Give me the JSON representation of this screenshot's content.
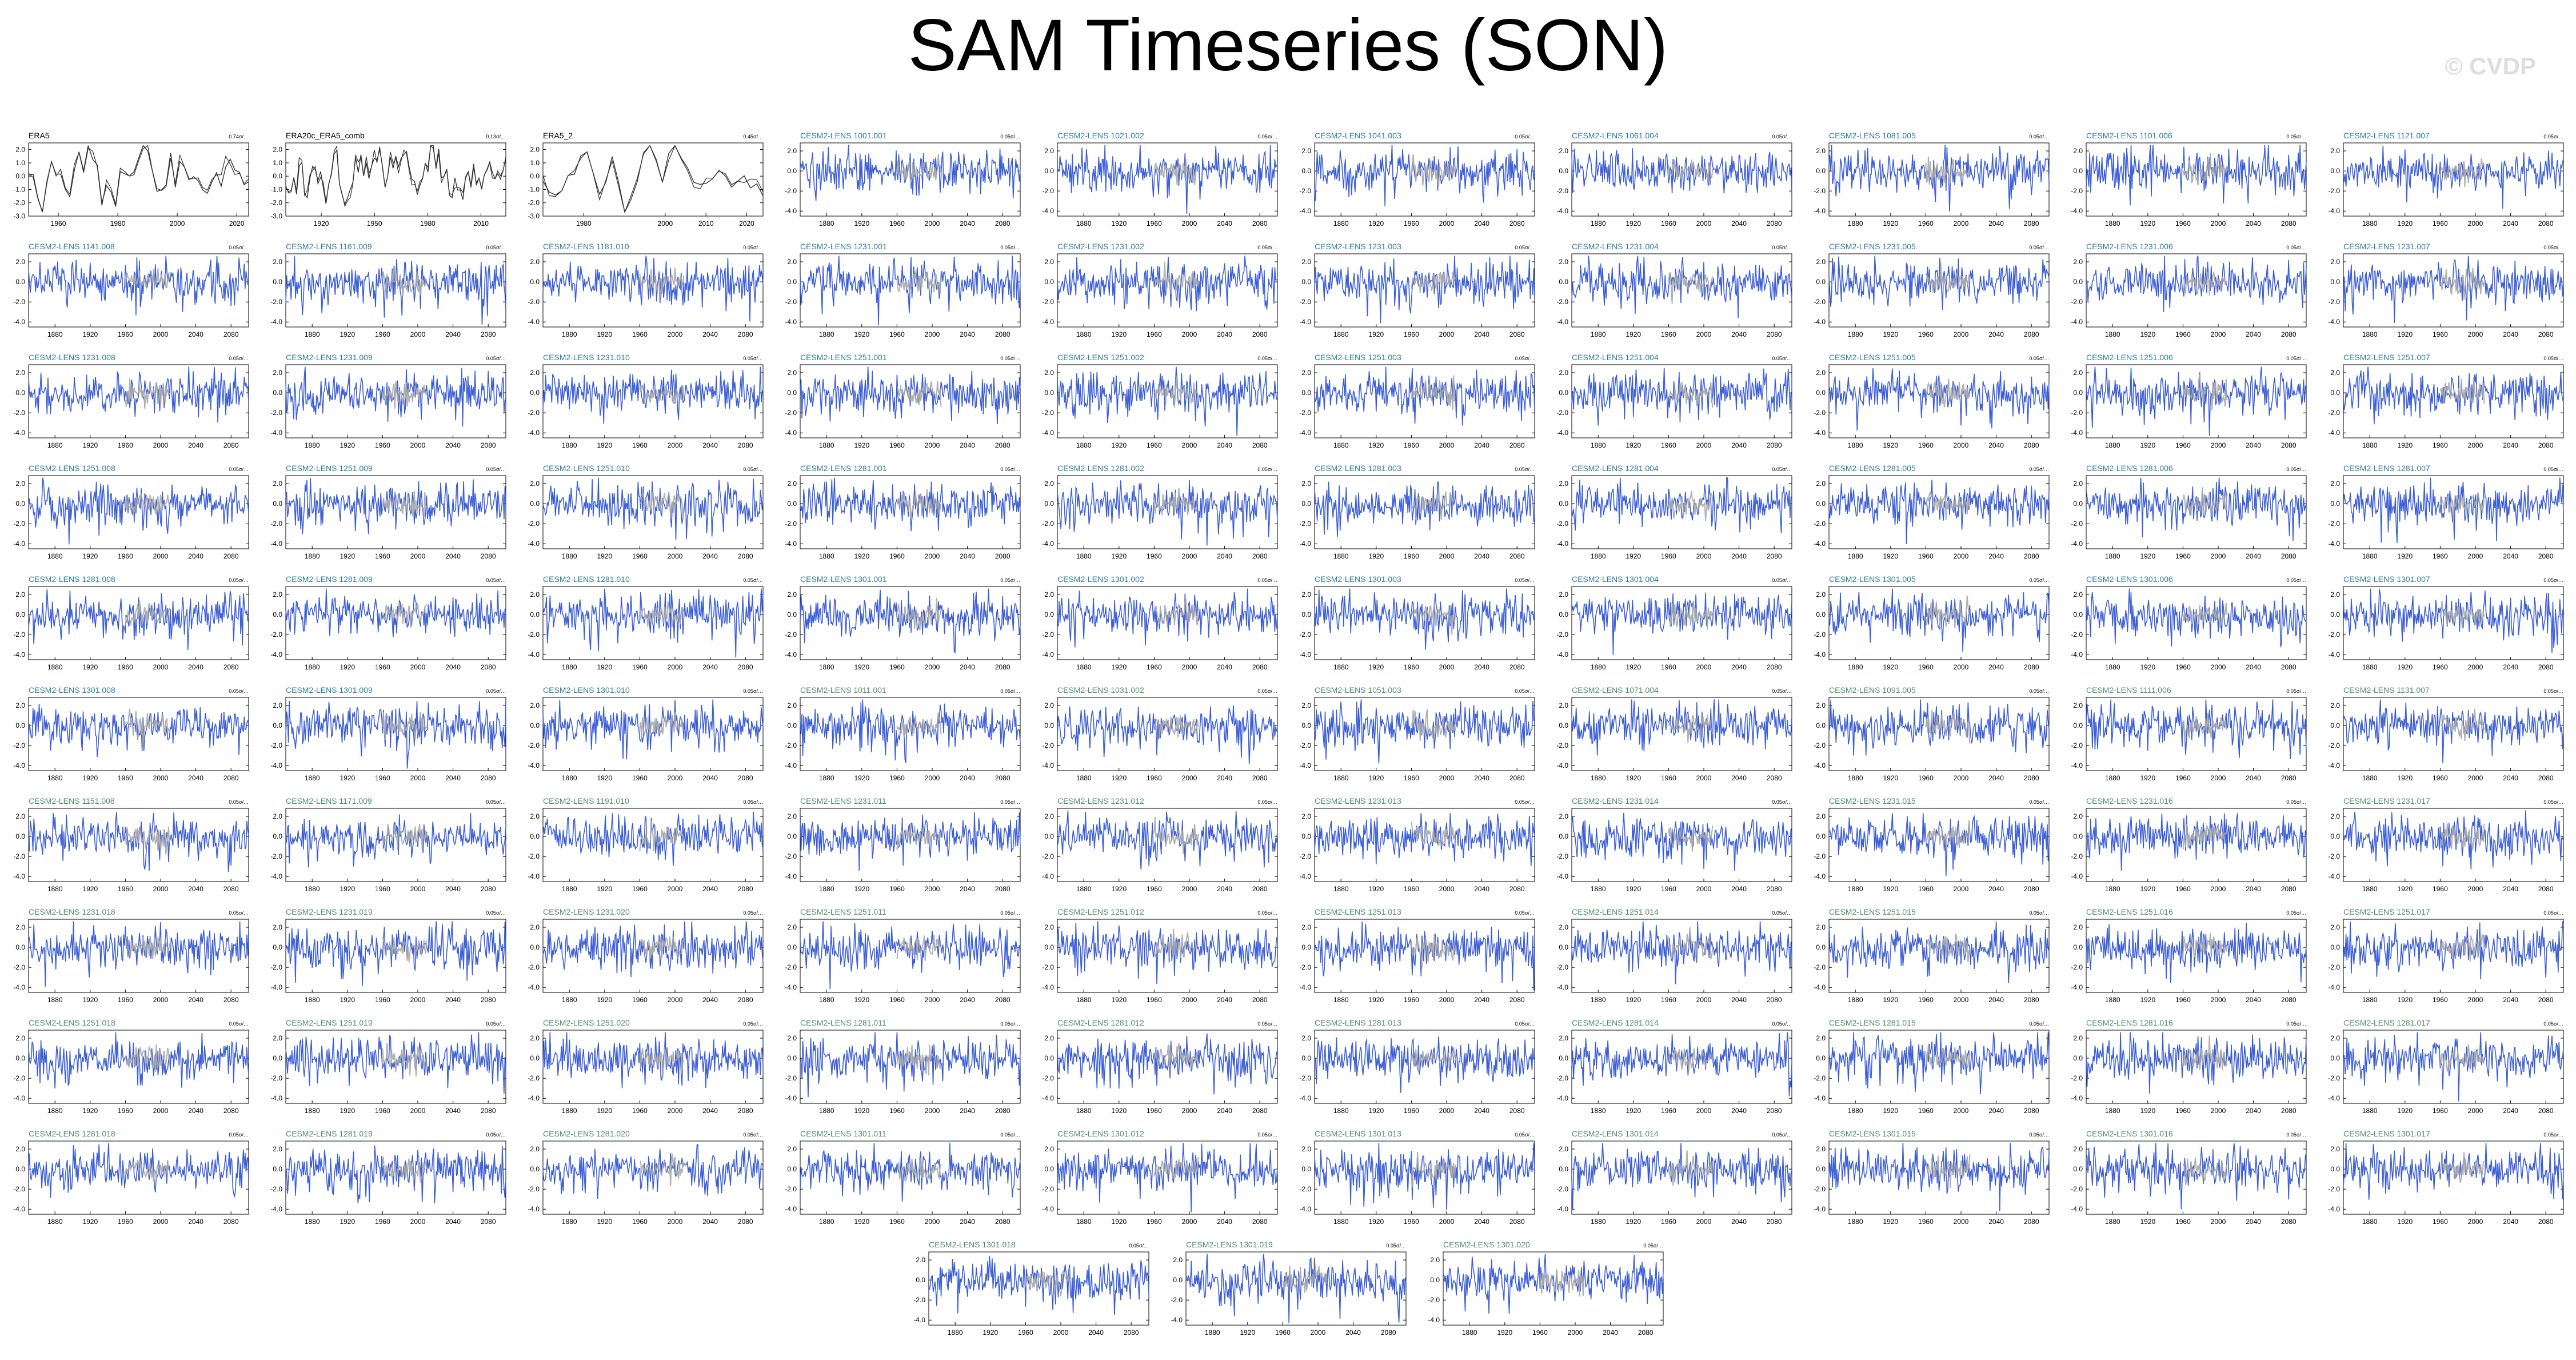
{
  "page": {
    "title": "SAM Timeseries (SON)",
    "watermark": "© CVDP"
  },
  "colors": {
    "model_line": "#3d5fd6",
    "obs_line": "#333333",
    "ensemble_mean": "#a8a8a8",
    "title_cesm2": "#2e7d99",
    "title_cesm2_alt": "#4f8f6a",
    "title_obs": "#000000"
  },
  "chart_data": {
    "type": "line",
    "panels": [
      {
        "title": "ERA5",
        "kind": "obs",
        "trend": "0.74σ/…",
        "xticks": [
          "1960",
          "1980",
          "2000",
          "2020"
        ],
        "yticks": [
          "2.0",
          "1.0",
          "0.0",
          "-1.0",
          "-2.0",
          "-3.0"
        ],
        "xlim": [
          1950,
          2024
        ],
        "ylim": [
          -3,
          2.5
        ]
      },
      {
        "title": "ERA20c_ERA5_comb",
        "kind": "obs",
        "trend": "0.13σ/…",
        "xticks": [
          "1920",
          "1950",
          "1980",
          "2010"
        ],
        "yticks": [
          "2.0",
          "1.0",
          "0.0",
          "-1.0",
          "-2.0",
          "-3.0"
        ],
        "xlim": [
          1900,
          2024
        ],
        "ylim": [
          -3,
          2.5
        ]
      },
      {
        "title": "ERA5_2",
        "kind": "obs",
        "trend": "0.45σ/…",
        "xticks": [
          "1980",
          "2000",
          "2010",
          "2020"
        ],
        "yticks": [
          "2.0",
          "1.0",
          "0.0",
          "-1.0",
          "-2.0",
          "-3.0"
        ],
        "xlim": [
          1970,
          2024
        ],
        "ylim": [
          -3,
          2.5
        ]
      },
      {
        "title": "CESM2-LENS 1001.001",
        "kind": "model"
      },
      {
        "title": "CESM2-LENS 1021.002",
        "kind": "model"
      },
      {
        "title": "CESM2-LENS 1041.003",
        "kind": "model"
      },
      {
        "title": "CESM2-LENS 1061.004",
        "kind": "model"
      },
      {
        "title": "CESM2-LENS 1081.005",
        "kind": "model"
      },
      {
        "title": "CESM2-LENS 1101.006",
        "kind": "model"
      },
      {
        "title": "CESM2-LENS 1121.007",
        "kind": "model"
      },
      {
        "title": "CESM2-LENS 1141.008",
        "kind": "model"
      },
      {
        "title": "CESM2-LENS 1161.009",
        "kind": "model"
      },
      {
        "title": "CESM2-LENS 1181.010",
        "kind": "model"
      },
      {
        "title": "CESM2-LENS 1231.001",
        "kind": "model"
      },
      {
        "title": "CESM2-LENS 1231.002",
        "kind": "model"
      },
      {
        "title": "CESM2-LENS 1231.003",
        "kind": "model"
      },
      {
        "title": "CESM2-LENS 1231.004",
        "kind": "model"
      },
      {
        "title": "CESM2-LENS 1231.005",
        "kind": "model"
      },
      {
        "title": "CESM2-LENS 1231.006",
        "kind": "model"
      },
      {
        "title": "CESM2-LENS 1231.007",
        "kind": "model"
      },
      {
        "title": "CESM2-LENS 1231.008",
        "kind": "model"
      },
      {
        "title": "CESM2-LENS 1231.009",
        "kind": "model"
      },
      {
        "title": "CESM2-LENS 1231.010",
        "kind": "model"
      },
      {
        "title": "CESM2-LENS 1251.001",
        "kind": "model"
      },
      {
        "title": "CESM2-LENS 1251.002",
        "kind": "model"
      },
      {
        "title": "CESM2-LENS 1251.003",
        "kind": "model"
      },
      {
        "title": "CESM2-LENS 1251.004",
        "kind": "model"
      },
      {
        "title": "CESM2-LENS 1251.005",
        "kind": "model"
      },
      {
        "title": "CESM2-LENS 1251.006",
        "kind": "model"
      },
      {
        "title": "CESM2-LENS 1251.007",
        "kind": "model"
      },
      {
        "title": "CESM2-LENS 1251.008",
        "kind": "model"
      },
      {
        "title": "CESM2-LENS 1251.009",
        "kind": "model"
      },
      {
        "title": "CESM2-LENS 1251.010",
        "kind": "model"
      },
      {
        "title": "CESM2-LENS 1281.001",
        "kind": "model"
      },
      {
        "title": "CESM2-LENS 1281.002",
        "kind": "model"
      },
      {
        "title": "CESM2-LENS 1281.003",
        "kind": "model"
      },
      {
        "title": "CESM2-LENS 1281.004",
        "kind": "model"
      },
      {
        "title": "CESM2-LENS 1281.005",
        "kind": "model"
      },
      {
        "title": "CESM2-LENS 1281.006",
        "kind": "model"
      },
      {
        "title": "CESM2-LENS 1281.007",
        "kind": "model"
      },
      {
        "title": "CESM2-LENS 1281.008",
        "kind": "model"
      },
      {
        "title": "CESM2-LENS 1281.009",
        "kind": "model"
      },
      {
        "title": "CESM2-LENS 1281.010",
        "kind": "model"
      },
      {
        "title": "CESM2-LENS 1301.001",
        "kind": "model"
      },
      {
        "title": "CESM2-LENS 1301.002",
        "kind": "model"
      },
      {
        "title": "CESM2-LENS 1301.003",
        "kind": "model"
      },
      {
        "title": "CESM2-LENS 1301.004",
        "kind": "model"
      },
      {
        "title": "CESM2-LENS 1301.005",
        "kind": "model"
      },
      {
        "title": "CESM2-LENS 1301.006",
        "kind": "model"
      },
      {
        "title": "CESM2-LENS 1301.007",
        "kind": "model"
      },
      {
        "title": "CESM2-LENS 1301.008",
        "kind": "model"
      },
      {
        "title": "CESM2-LENS 1301.009",
        "kind": "model"
      },
      {
        "title": "CESM2-LENS 1301.010",
        "kind": "model"
      },
      {
        "title": "CESM2-LENS 1011.001",
        "kind": "model",
        "alt": true
      },
      {
        "title": "CESM2-LENS 1031.002",
        "kind": "model",
        "alt": true
      },
      {
        "title": "CESM2-LENS 1051.003",
        "kind": "model",
        "alt": true
      },
      {
        "title": "CESM2-LENS 1071.004",
        "kind": "model",
        "alt": true
      },
      {
        "title": "CESM2-LENS 1091.005",
        "kind": "model",
        "alt": true
      },
      {
        "title": "CESM2-LENS 1111.006",
        "kind": "model",
        "alt": true
      },
      {
        "title": "CESM2-LENS 1131.007",
        "kind": "model",
        "alt": true
      },
      {
        "title": "CESM2-LENS 1151.008",
        "kind": "model",
        "alt": true
      },
      {
        "title": "CESM2-LENS 1171.009",
        "kind": "model",
        "alt": true
      },
      {
        "title": "CESM2-LENS 1191.010",
        "kind": "model",
        "alt": true
      },
      {
        "title": "CESM2-LENS 1231.011",
        "kind": "model",
        "alt": true
      },
      {
        "title": "CESM2-LENS 1231.012",
        "kind": "model",
        "alt": true
      },
      {
        "title": "CESM2-LENS 1231.013",
        "kind": "model",
        "alt": true
      },
      {
        "title": "CESM2-LENS 1231.014",
        "kind": "model",
        "alt": true
      },
      {
        "title": "CESM2-LENS 1231.015",
        "kind": "model",
        "alt": true
      },
      {
        "title": "CESM2-LENS 1231.016",
        "kind": "model",
        "alt": true
      },
      {
        "title": "CESM2-LENS 1231.017",
        "kind": "model",
        "alt": true
      },
      {
        "title": "CESM2-LENS 1231.018",
        "kind": "model",
        "alt": true
      },
      {
        "title": "CESM2-LENS 1231.019",
        "kind": "model",
        "alt": true
      },
      {
        "title": "CESM2-LENS 1231.020",
        "kind": "model",
        "alt": true
      },
      {
        "title": "CESM2-LENS 1251.011",
        "kind": "model",
        "alt": true
      },
      {
        "title": "CESM2-LENS 1251.012",
        "kind": "model",
        "alt": true
      },
      {
        "title": "CESM2-LENS 1251.013",
        "kind": "model",
        "alt": true
      },
      {
        "title": "CESM2-LENS 1251.014",
        "kind": "model",
        "alt": true
      },
      {
        "title": "CESM2-LENS 1251.015",
        "kind": "model",
        "alt": true
      },
      {
        "title": "CESM2-LENS 1251.016",
        "kind": "model",
        "alt": true
      },
      {
        "title": "CESM2-LENS 1251.017",
        "kind": "model",
        "alt": true
      },
      {
        "title": "CESM2-LENS 1251.018",
        "kind": "model",
        "alt": true
      },
      {
        "title": "CESM2-LENS 1251.019",
        "kind": "model",
        "alt": true
      },
      {
        "title": "CESM2-LENS 1251.020",
        "kind": "model",
        "alt": true
      },
      {
        "title": "CESM2-LENS 1281.011",
        "kind": "model",
        "alt": true
      },
      {
        "title": "CESM2-LENS 1281.012",
        "kind": "model",
        "alt": true
      },
      {
        "title": "CESM2-LENS 1281.013",
        "kind": "model",
        "alt": true
      },
      {
        "title": "CESM2-LENS 1281.014",
        "kind": "model",
        "alt": true
      },
      {
        "title": "CESM2-LENS 1281.015",
        "kind": "model",
        "alt": true
      },
      {
        "title": "CESM2-LENS 1281.016",
        "kind": "model",
        "alt": true
      },
      {
        "title": "CESM2-LENS 1281.017",
        "kind": "model",
        "alt": true
      },
      {
        "title": "CESM2-LENS 1281.018",
        "kind": "model",
        "alt": true
      },
      {
        "title": "CESM2-LENS 1281.019",
        "kind": "model",
        "alt": true
      },
      {
        "title": "CESM2-LENS 1281.020",
        "kind": "model",
        "alt": true
      },
      {
        "title": "CESM2-LENS 1301.011",
        "kind": "model",
        "alt": true
      },
      {
        "title": "CESM2-LENS 1301.012",
        "kind": "model",
        "alt": true
      },
      {
        "title": "CESM2-LENS 1301.013",
        "kind": "model",
        "alt": true
      },
      {
        "title": "CESM2-LENS 1301.014",
        "kind": "model",
        "alt": true
      },
      {
        "title": "CESM2-LENS 1301.015",
        "kind": "model",
        "alt": true
      },
      {
        "title": "CESM2-LENS 1301.016",
        "kind": "model",
        "alt": true
      },
      {
        "title": "CESM2-LENS 1301.017",
        "kind": "model",
        "alt": true
      },
      {
        "title": "CESM2-LENS 1301.018",
        "kind": "model",
        "alt": true
      },
      {
        "title": "CESM2-LENS 1301.019",
        "kind": "model",
        "alt": true
      },
      {
        "title": "CESM2-LENS 1301.020",
        "kind": "model",
        "alt": true
      }
    ],
    "model_defaults": {
      "trend": "0.05σ/…",
      "xticks": [
        "1880",
        "1920",
        "1960",
        "2000",
        "2040",
        "2080"
      ],
      "yticks": [
        "2.0",
        "0.0",
        "-2.0",
        "-4.0"
      ],
      "xlim": [
        1850,
        2100
      ],
      "ylim": [
        -4.5,
        2.8
      ]
    }
  }
}
